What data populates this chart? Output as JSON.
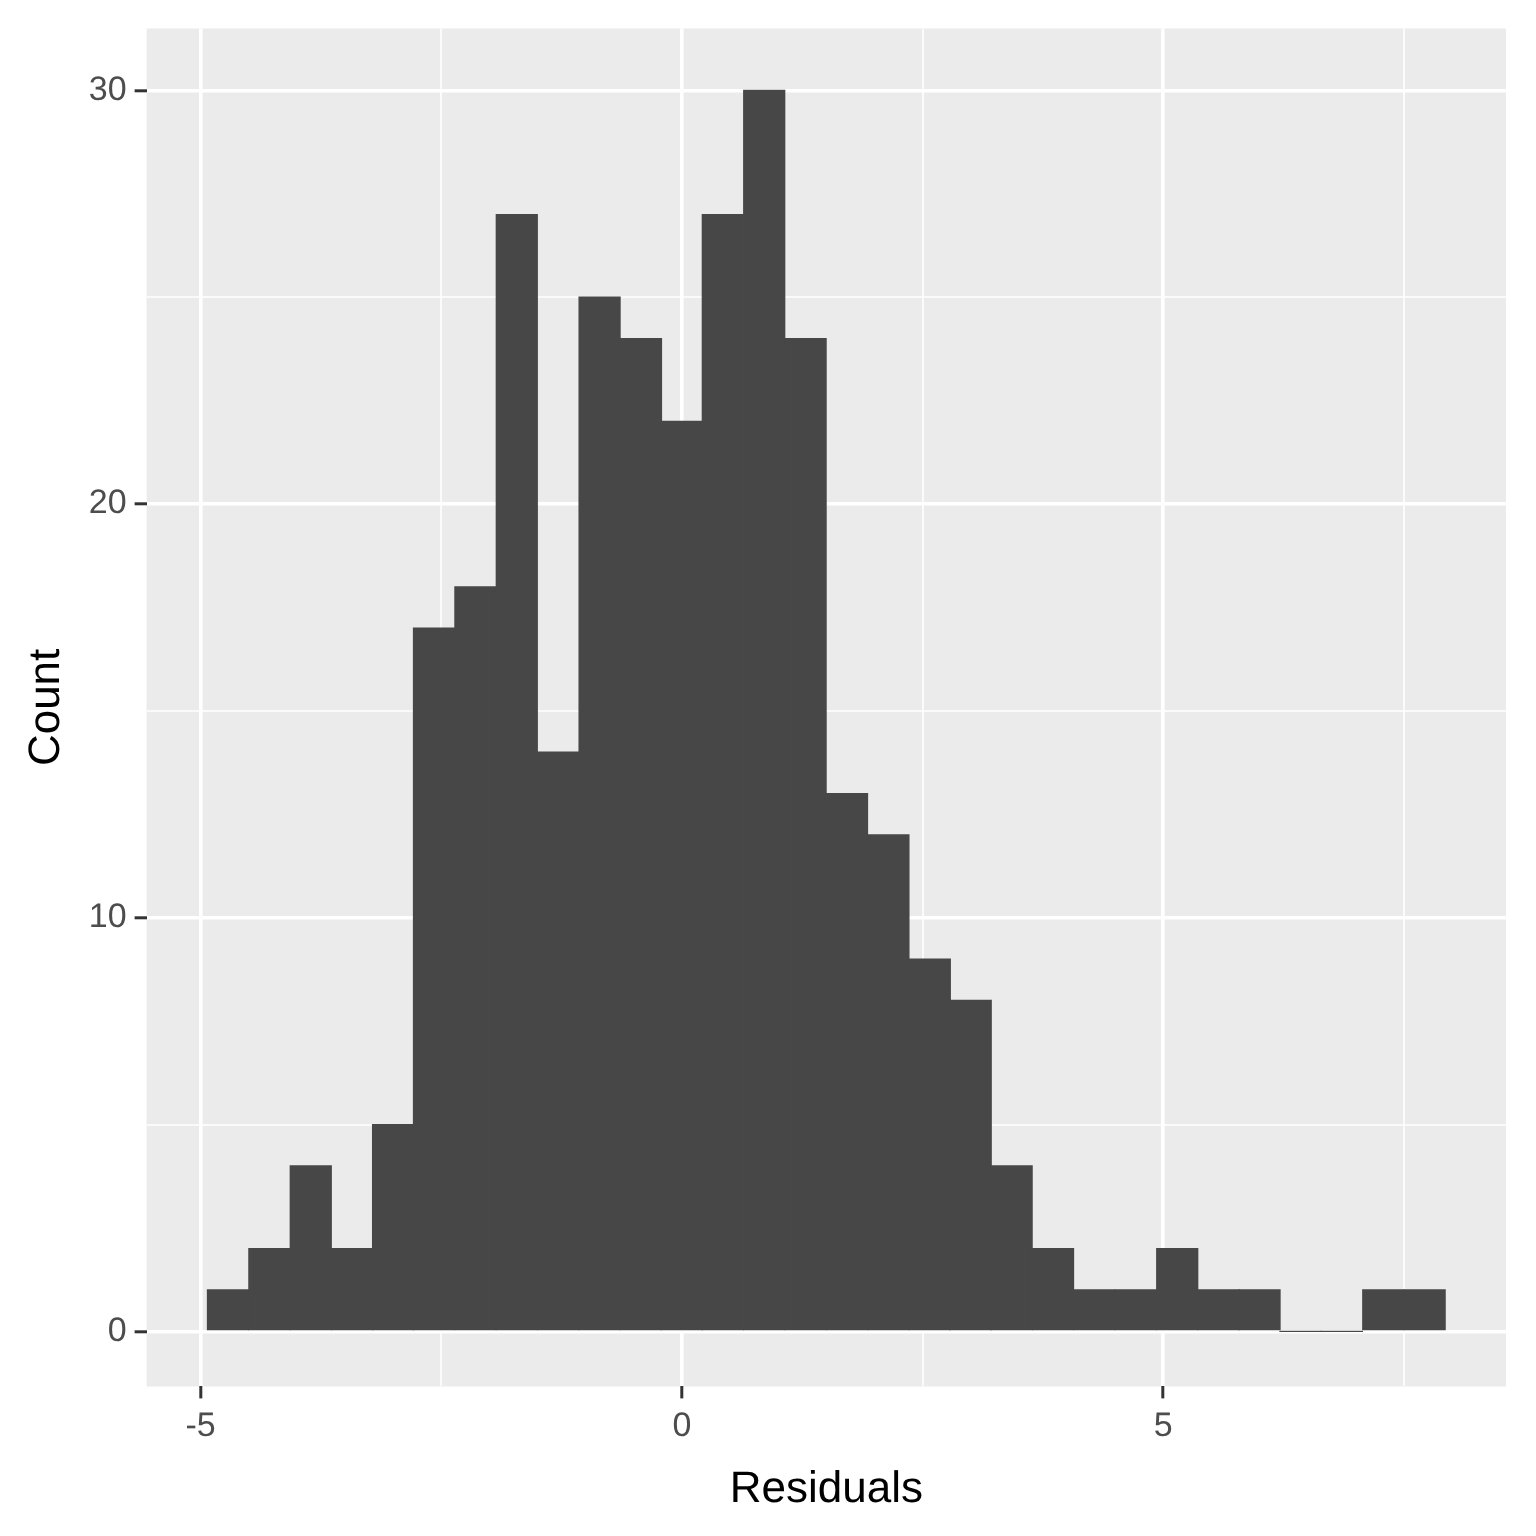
{
  "chart_data": {
    "type": "histogram",
    "xlabel": "Residuals",
    "ylabel": "Count",
    "color": "#474747",
    "bins": [
      -4.93,
      -4.5,
      -4.07,
      -3.64,
      -3.21,
      -2.79,
      -2.36,
      -1.93,
      -1.5,
      -1.07,
      -0.64,
      -0.21,
      0.21,
      0.64,
      1.07,
      1.5,
      1.93,
      2.36,
      2.79,
      3.21,
      3.64,
      4.07,
      4.5,
      4.93,
      5.36,
      5.79,
      6.21,
      6.64,
      7.07,
      7.5,
      7.93
    ],
    "values": [
      1,
      2,
      4,
      2,
      5,
      17,
      18,
      27,
      14,
      25,
      24,
      22,
      27,
      30,
      24,
      13,
      12,
      9,
      8,
      4,
      2,
      1,
      1,
      2,
      1,
      1,
      0,
      0,
      1,
      1
    ],
    "xlim": [
      -5.56,
      8.56
    ],
    "xticks": [
      -5,
      {
        "value": -2.5,
        "label": null
      },
      0,
      {
        "value": 2.5,
        "label": null
      },
      5,
      {
        "value": 7.5,
        "label": null
      }
    ],
    "ylim": [
      -1.33,
      31.5
    ],
    "yticks": [
      0,
      {
        "value": 5,
        "label": null
      },
      10,
      {
        "value": 15,
        "label": null
      },
      20,
      {
        "value": 25,
        "label": null
      },
      30
    ],
    "grid": true,
    "legend": false
  }
}
